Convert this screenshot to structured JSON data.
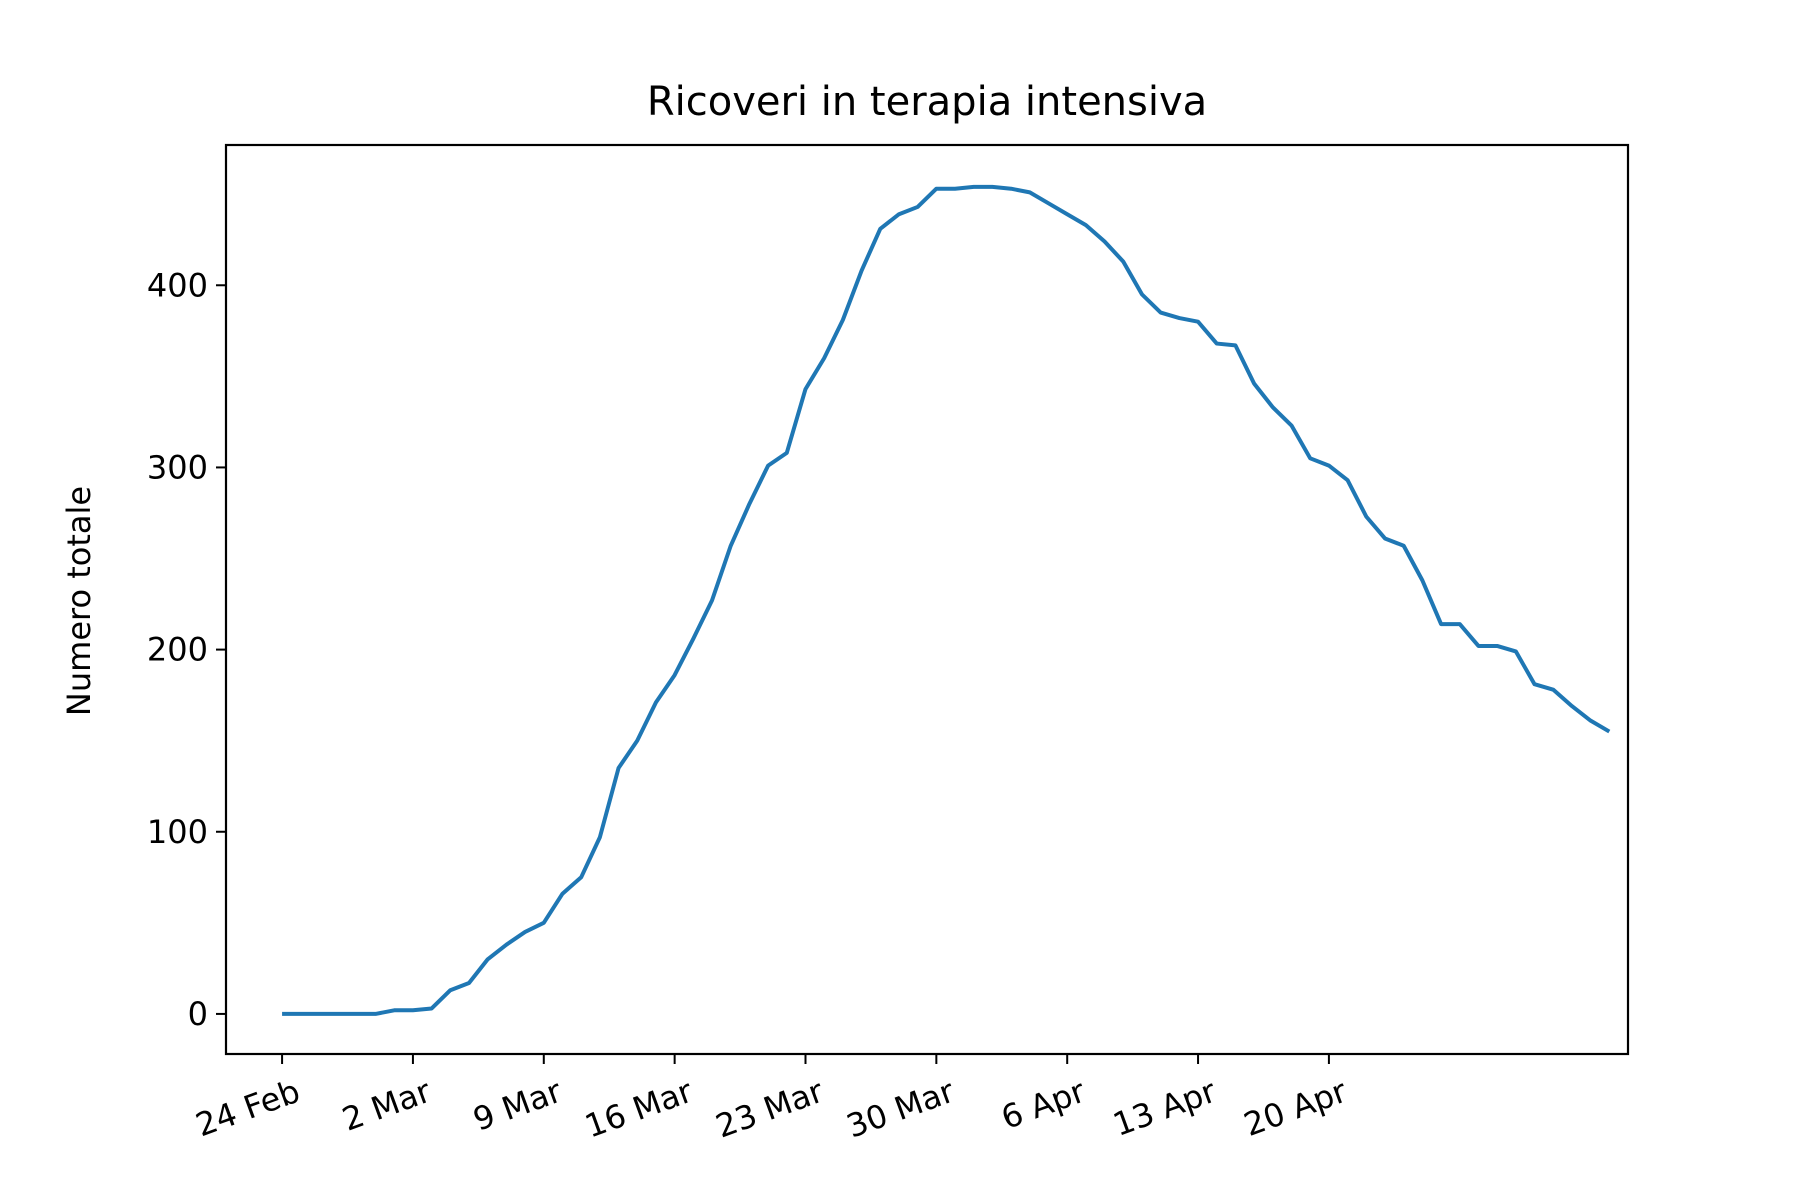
{
  "chart_data": {
    "type": "line",
    "title": "Ricoveri in terapia intensiva",
    "xlabel": "",
    "ylabel": "Numero totale",
    "x_start": "2020-02-24",
    "xlim": [
      "2020-02-21",
      "2020-05-06"
    ],
    "ylim": [
      -22,
      477
    ],
    "grid": false,
    "legend": "none",
    "line_color": "#1f77b4",
    "x_ticks": [
      {
        "date": "2020-02-24",
        "label": "24 Feb"
      },
      {
        "date": "2020-03-02",
        "label": "2 Mar"
      },
      {
        "date": "2020-03-09",
        "label": "9 Mar"
      },
      {
        "date": "2020-03-16",
        "label": "16 Mar"
      },
      {
        "date": "2020-03-23",
        "label": "23 Mar"
      },
      {
        "date": "2020-03-30",
        "label": "30 Mar"
      },
      {
        "date": "2020-04-06",
        "label": "6 Apr"
      },
      {
        "date": "2020-04-13",
        "label": "13 Apr"
      },
      {
        "date": "2020-04-20",
        "label": "20 Apr"
      }
    ],
    "y_ticks": [
      {
        "value": 0,
        "label": "0"
      },
      {
        "value": 100,
        "label": "100"
      },
      {
        "value": 200,
        "label": "200"
      },
      {
        "value": 300,
        "label": "300"
      },
      {
        "value": 400,
        "label": "400"
      }
    ],
    "series": [
      {
        "values": [
          0,
          0,
          0,
          0,
          0,
          0,
          2,
          2,
          3,
          13,
          17,
          30,
          38,
          45,
          50,
          66,
          75,
          97,
          135,
          150,
          171,
          186,
          206,
          227,
          257,
          280,
          301,
          308,
          343,
          360,
          381,
          408,
          431,
          439,
          443,
          453,
          453,
          454,
          454,
          453,
          451,
          445,
          439,
          433,
          424,
          413,
          395,
          385,
          382,
          380,
          368,
          367,
          346,
          333,
          323,
          305,
          301,
          293,
          273,
          261,
          257,
          238,
          214,
          214,
          202,
          202,
          199,
          181,
          178,
          169,
          161,
          155
        ]
      }
    ]
  }
}
